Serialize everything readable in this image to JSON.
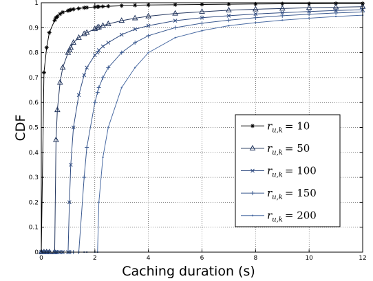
{
  "chart_data": {
    "type": "line",
    "title": "",
    "xlabel": "Caching duration (s)",
    "ylabel": "CDF",
    "xlim": [
      0,
      12
    ],
    "ylim": [
      0,
      1
    ],
    "xticks": [
      0,
      2,
      4,
      6,
      8,
      10,
      12
    ],
    "yticks": [
      0,
      0.1,
      0.2,
      0.3,
      0.4,
      0.5,
      0.6,
      0.7,
      0.8,
      0.9,
      1
    ],
    "xtick_labels": [
      "0",
      "2",
      "4",
      "6",
      "8",
      "10",
      "12"
    ],
    "ytick_labels": [
      "0",
      "0.1",
      "0.2",
      "0.3",
      "0.4",
      "0.5",
      "0.6",
      "0.7",
      "0.8",
      "0.9",
      "1"
    ],
    "grid": true,
    "legend_position": "lower-right",
    "x": [
      0,
      0.1,
      0.2,
      0.3,
      0.5,
      0.55,
      0.6,
      0.7,
      0.8,
      1.0,
      1.05,
      1.1,
      1.2,
      1.4,
      1.6,
      1.7,
      2.0,
      2.1,
      2.15,
      2.3,
      2.5,
      3.0,
      3.5,
      4.0,
      5.0,
      6.0,
      7.0,
      8.0,
      9.0,
      10.0,
      11.0,
      12.0
    ],
    "series": [
      {
        "name": "r_{u,k} = 10",
        "legend_var": "r",
        "legend_sub": "u,k",
        "legend_value": "= 10",
        "marker": "asterisk",
        "color": "#000000",
        "values": [
          0,
          0.72,
          0.82,
          0.88,
          0.93,
          0.94,
          0.945,
          0.955,
          0.962,
          0.968,
          0.97,
          0.972,
          0.974,
          0.977,
          0.98,
          0.981,
          0.983,
          0.984,
          0.984,
          0.985,
          0.986,
          0.988,
          0.99,
          0.991,
          0.992,
          0.993,
          0.994,
          0.995,
          0.996,
          0.996,
          0.997,
          0.997
        ]
      },
      {
        "name": "r_{u,k} = 50",
        "legend_var": "r",
        "legend_sub": "u,k",
        "legend_value": "= 50",
        "marker": "triangle",
        "color": "#23365e",
        "values": [
          0,
          0,
          0,
          0,
          0,
          0.45,
          0.57,
          0.68,
          0.74,
          0.8,
          0.81,
          0.82,
          0.84,
          0.86,
          0.875,
          0.88,
          0.895,
          0.9,
          0.902,
          0.908,
          0.915,
          0.928,
          0.938,
          0.946,
          0.957,
          0.964,
          0.97,
          0.974,
          0.977,
          0.98,
          0.982,
          0.984
        ]
      },
      {
        "name": "r_{u,k} = 100",
        "legend_var": "r",
        "legend_sub": "u,k",
        "legend_value": "= 100",
        "marker": "x",
        "color": "#2e4a80",
        "values": [
          0,
          0,
          0,
          0,
          0,
          0,
          0,
          0,
          0,
          0,
          0.2,
          0.35,
          0.5,
          0.63,
          0.71,
          0.74,
          0.79,
          0.8,
          0.81,
          0.825,
          0.84,
          0.872,
          0.894,
          0.908,
          0.928,
          0.94,
          0.948,
          0.955,
          0.96,
          0.965,
          0.969,
          0.972
        ]
      },
      {
        "name": "r_{u,k} = 150",
        "legend_var": "r",
        "legend_sub": "u,k",
        "legend_value": "= 150",
        "marker": "plus",
        "color": "#3c5b91",
        "values": [
          0,
          0,
          0,
          0,
          0,
          0,
          0,
          0,
          0,
          0,
          0,
          0,
          0,
          0,
          0.3,
          0.42,
          0.6,
          0.64,
          0.66,
          0.7,
          0.74,
          0.8,
          0.84,
          0.868,
          0.9,
          0.918,
          0.93,
          0.94,
          0.948,
          0.954,
          0.959,
          0.963
        ]
      },
      {
        "name": "r_{u,k} = 200",
        "legend_var": "r",
        "legend_sub": "u,k",
        "legend_value": "= 200",
        "marker": "dot",
        "color": "#4a6ba3",
        "values": [
          0,
          0,
          0,
          0,
          0,
          0,
          0,
          0,
          0,
          0,
          0,
          0,
          0,
          0,
          0,
          0,
          0,
          0,
          0.2,
          0.38,
          0.5,
          0.66,
          0.74,
          0.8,
          0.86,
          0.888,
          0.908,
          0.92,
          0.93,
          0.938,
          0.945,
          0.95
        ]
      }
    ]
  }
}
